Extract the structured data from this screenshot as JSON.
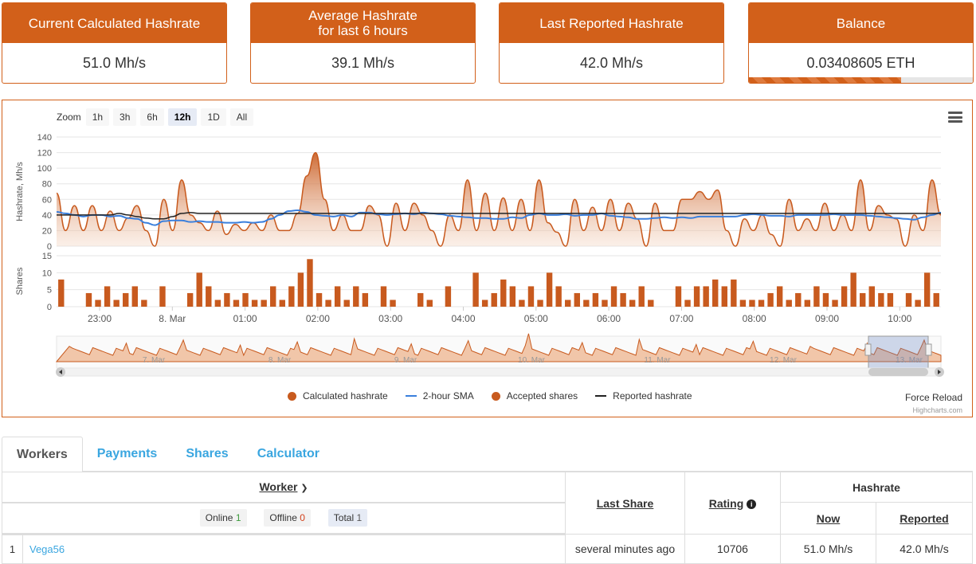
{
  "cards": [
    {
      "title": "Current Calculated Hashrate",
      "value": "51.0 Mh/s"
    },
    {
      "title": "Average Hashrate\nfor last 6 hours",
      "value": "39.1 Mh/s"
    },
    {
      "title": "Last Reported Hashrate",
      "value": "42.0 Mh/s"
    },
    {
      "title": "Balance",
      "value": "0.03408605 ETH",
      "progress": 0.68
    }
  ],
  "zoom": {
    "label": "Zoom",
    "buttons": [
      "1h",
      "3h",
      "6h",
      "12h",
      "1D",
      "All"
    ],
    "active": "12h"
  },
  "chart_data": {
    "type": "area",
    "ylabel_top": "Hashrate, Mh/s",
    "ylabel_bottom": "Shares",
    "y_ticks_top": [
      0,
      20,
      40,
      60,
      80,
      100,
      120,
      140
    ],
    "y_ticks_bottom": [
      0,
      5,
      10,
      15
    ],
    "x_ticks": [
      "23:00",
      "8. Mar",
      "01:00",
      "02:00",
      "03:00",
      "04:00",
      "05:00",
      "06:00",
      "07:00",
      "08:00",
      "09:00",
      "10:00"
    ],
    "series": [
      {
        "name": "Calculated hashrate",
        "color": "#c85a1e",
        "values": [
          68,
          20,
          52,
          20,
          52,
          20,
          45,
          20,
          36,
          52,
          20,
          0,
          60,
          20,
          85,
          40,
          30,
          20,
          45,
          15,
          28,
          20,
          30,
          20,
          40,
          20,
          20,
          42,
          90,
          120,
          60,
          20,
          40,
          20,
          20,
          52,
          40,
          0,
          55,
          20,
          55,
          40,
          20,
          0,
          40,
          20,
          85,
          20,
          68,
          20,
          62,
          20,
          60,
          20,
          85,
          30,
          18,
          0,
          60,
          20,
          50,
          20,
          60,
          20,
          55,
          35,
          0,
          55,
          20,
          20,
          60,
          60,
          70,
          60,
          72,
          20,
          0,
          35,
          20,
          40,
          15,
          0,
          60,
          20,
          35,
          20,
          55,
          20,
          40,
          20,
          85,
          20,
          52,
          40,
          35,
          0,
          40,
          20,
          85,
          40
        ]
      },
      {
        "name": "2-hour SMA",
        "color": "#3a7fdc",
        "values": [
          44,
          42,
          40,
          38,
          40,
          40,
          38,
          39,
          36,
          35,
          30,
          27,
          32,
          33,
          33,
          31,
          32,
          31,
          31,
          30,
          30,
          31,
          30,
          31,
          35,
          40,
          45,
          46,
          44,
          40,
          39,
          38,
          40,
          38,
          43,
          43,
          41,
          40,
          41,
          42,
          41,
          43,
          42,
          41,
          39,
          38,
          37,
          36,
          36,
          35,
          35,
          37,
          36,
          40,
          42,
          40,
          40,
          41,
          39,
          40,
          40,
          42,
          39,
          38,
          37,
          35,
          35,
          36,
          37,
          36,
          37,
          36,
          38,
          38,
          38,
          38,
          38,
          40,
          41,
          40,
          39,
          39,
          38,
          40,
          40,
          40,
          40,
          41,
          40,
          40,
          40,
          39,
          38,
          37,
          36,
          35,
          34,
          37,
          40,
          43
        ]
      },
      {
        "name": "Accepted shares",
        "color": "#c85a1e",
        "values": [
          8,
          0,
          0,
          4,
          2,
          6,
          2,
          4,
          6,
          2,
          0,
          6,
          0,
          0,
          4,
          10,
          6,
          2,
          4,
          2,
          4,
          2,
          2,
          6,
          2,
          6,
          10,
          14,
          4,
          2,
          6,
          2,
          6,
          4,
          0,
          6,
          2,
          0,
          0,
          4,
          2,
          0,
          6,
          0,
          0,
          10,
          2,
          4,
          8,
          6,
          2,
          6,
          2,
          10,
          6,
          2,
          4,
          2,
          4,
          2,
          6,
          4,
          2,
          6,
          2,
          0,
          0,
          6,
          2,
          6,
          6,
          8,
          6,
          8,
          2,
          2,
          2,
          4,
          6,
          2,
          4,
          2,
          6,
          4,
          2,
          6,
          10,
          4,
          6,
          4,
          4,
          0,
          4,
          2,
          10,
          4
        ]
      },
      {
        "name": "Reported hashrate",
        "color": "#222222",
        "values": [
          40,
          40,
          40,
          40,
          40,
          40,
          40,
          42,
          40,
          38,
          36,
          35,
          35,
          38,
          42,
          43,
          42,
          42,
          42,
          42,
          42,
          42,
          42,
          42,
          42,
          42,
          42,
          42,
          42,
          42,
          42,
          42,
          42,
          42,
          42,
          42,
          42,
          42,
          42,
          42,
          42,
          42,
          42,
          42,
          42,
          42,
          42,
          42,
          42,
          42,
          42,
          42,
          42,
          42,
          42,
          42,
          42,
          42,
          42,
          42,
          42,
          42,
          42,
          42,
          42,
          42,
          42,
          42,
          42,
          42,
          42,
          42,
          42,
          42,
          42,
          42,
          42,
          42,
          42,
          42,
          42,
          42,
          42,
          42,
          42,
          42,
          42,
          42,
          42,
          42,
          42,
          42,
          42,
          42,
          42,
          42,
          42,
          42,
          42,
          42
        ]
      }
    ],
    "ylim_top": [
      0,
      140
    ],
    "ylim_bottom": [
      0,
      15
    ],
    "legend": "bottom-center"
  },
  "navigator": {
    "labels": [
      "7. Mar",
      "8. Mar",
      "9. Mar",
      "10. Mar",
      "11. Mar",
      "12. Mar",
      "13. Mar"
    ]
  },
  "force_reload": "Force Reload",
  "credits": "Highcharts.com",
  "tabs": [
    "Workers",
    "Payments",
    "Shares",
    "Calculator"
  ],
  "table": {
    "h_worker": "Worker",
    "h_last_share": "Last Share",
    "h_rating": "Rating",
    "h_hashrate": "Hashrate",
    "h_now": "Now",
    "h_reported": "Reported",
    "f_online": "Online",
    "f_online_n": "1",
    "f_offline": "Offline",
    "f_offline_n": "0",
    "f_total": "Total",
    "f_total_n": "1",
    "rows": [
      {
        "idx": "1",
        "name": "Vega56",
        "last_share": "several minutes ago",
        "rating": "10706",
        "now": "51.0 Mh/s",
        "reported": "42.0 Mh/s"
      }
    ]
  }
}
